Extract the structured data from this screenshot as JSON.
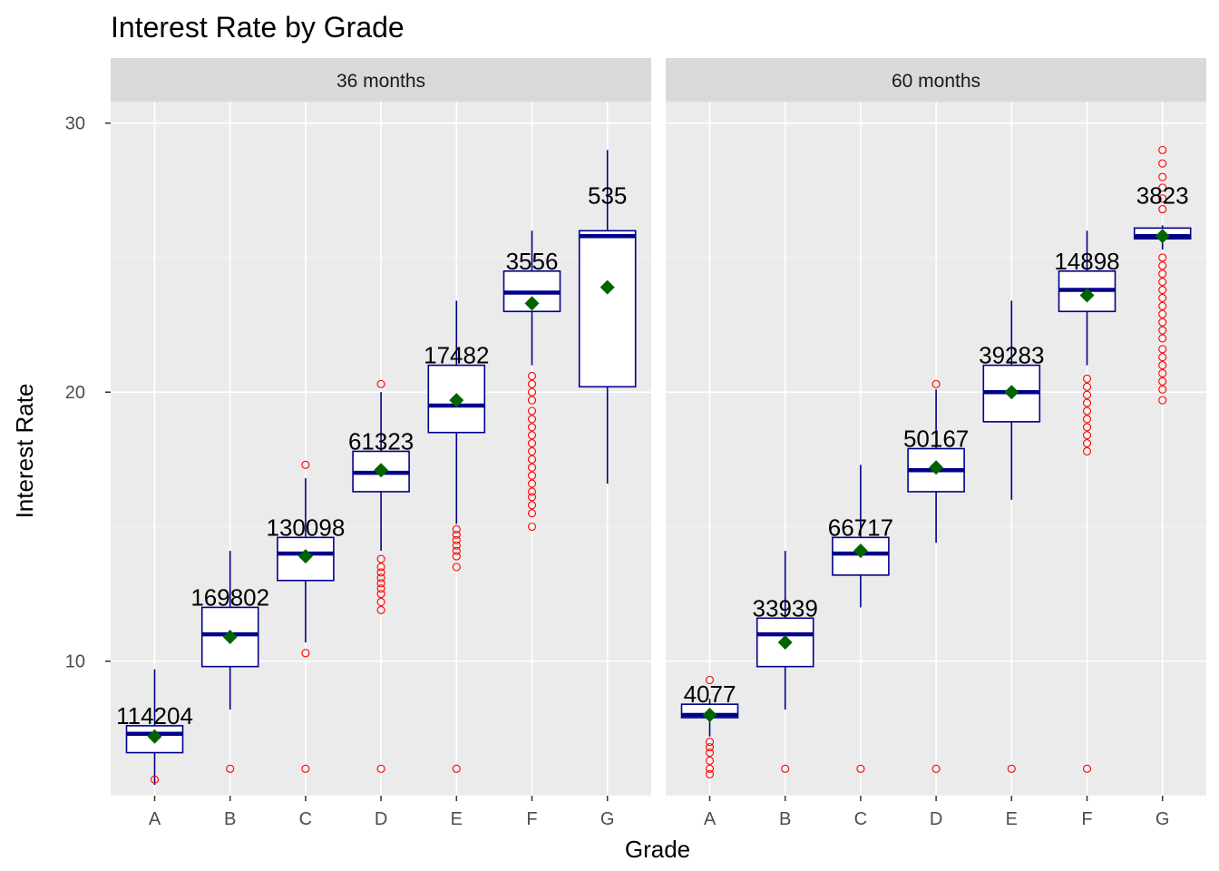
{
  "chart_data": {
    "type": "box",
    "title": "Interest Rate by Grade",
    "xlabel": "Grade",
    "ylabel": "Interest Rate",
    "ylim": [
      5.0,
      30.8
    ],
    "yticks": [
      10,
      20,
      30
    ],
    "categories": [
      "A",
      "B",
      "C",
      "D",
      "E",
      "F",
      "G"
    ],
    "grid": true,
    "colors": {
      "panel_bg": "#ebebeb",
      "strip_bg": "#d9d9d9",
      "grid": "#ffffff",
      "box_stroke": "#00008b",
      "box_fill": "#ffffff",
      "outlier": "#ff0000",
      "mean_marker": "#006400"
    },
    "panels": [
      {
        "strip": "36 months",
        "groups": [
          {
            "grade": "A",
            "count": "114204",
            "q1": 6.6,
            "median": 7.3,
            "q3": 7.6,
            "whisker_low": 5.4,
            "whisker_high": 9.7,
            "mean": 7.2,
            "outliers": [
              5.6
            ]
          },
          {
            "grade": "B",
            "count": "169802",
            "q1": 9.8,
            "median": 11.0,
            "q3": 12.0,
            "whisker_low": 8.2,
            "whisker_high": 14.1,
            "mean": 10.9,
            "outliers": [
              6.0
            ]
          },
          {
            "grade": "C",
            "count": "130098",
            "q1": 13.0,
            "median": 14.0,
            "q3": 14.6,
            "whisker_low": 10.7,
            "whisker_high": 16.8,
            "mean": 13.9,
            "outliers": [
              6.0,
              10.3,
              17.3
            ]
          },
          {
            "grade": "D",
            "count": "61323",
            "q1": 16.3,
            "median": 17.0,
            "q3": 17.8,
            "whisker_low": 14.1,
            "whisker_high": 20.0,
            "mean": 17.1,
            "outliers": [
              6.0,
              11.9,
              12.2,
              12.5,
              12.7,
              12.9,
              13.1,
              13.3,
              13.5,
              13.8,
              20.3
            ]
          },
          {
            "grade": "E",
            "count": "17482",
            "q1": 18.5,
            "median": 19.5,
            "q3": 21.0,
            "whisker_low": 15.1,
            "whisker_high": 23.4,
            "mean": 19.7,
            "outliers": [
              6.0,
              13.5,
              13.9,
              14.1,
              14.3,
              14.5,
              14.7,
              14.9
            ]
          },
          {
            "grade": "F",
            "count": "3556",
            "q1": 23.0,
            "median": 23.7,
            "q3": 24.5,
            "whisker_low": 21.0,
            "whisker_high": 26.0,
            "mean": 23.3,
            "outliers": [
              15.0,
              15.5,
              15.8,
              16.1,
              16.3,
              16.6,
              16.9,
              17.2,
              17.5,
              17.8,
              18.1,
              18.4,
              18.7,
              19.0,
              19.3,
              19.7,
              20.0,
              20.3,
              20.6
            ]
          },
          {
            "grade": "G",
            "count": "535",
            "q1": 20.2,
            "median": 25.8,
            "q3": 26.0,
            "whisker_low": 16.6,
            "whisker_high": 29.0,
            "mean": 23.9,
            "outliers": []
          }
        ]
      },
      {
        "strip": "60 months",
        "groups": [
          {
            "grade": "A",
            "count": "4077",
            "q1": 7.9,
            "median": 8.0,
            "q3": 8.4,
            "whisker_low": 7.2,
            "whisker_high": 8.6,
            "mean": 8.0,
            "outliers": [
              5.8,
              6.0,
              6.3,
              6.6,
              6.8,
              7.0,
              9.3
            ]
          },
          {
            "grade": "B",
            "count": "33939",
            "q1": 9.8,
            "median": 11.0,
            "q3": 11.6,
            "whisker_low": 8.2,
            "whisker_high": 14.1,
            "mean": 10.7,
            "outliers": [
              6.0
            ]
          },
          {
            "grade": "C",
            "count": "66717",
            "q1": 13.2,
            "median": 14.0,
            "q3": 14.6,
            "whisker_low": 12.0,
            "whisker_high": 17.3,
            "mean": 14.1,
            "outliers": [
              6.0
            ]
          },
          {
            "grade": "D",
            "count": "50167",
            "q1": 16.3,
            "median": 17.1,
            "q3": 17.9,
            "whisker_low": 14.4,
            "whisker_high": 20.1,
            "mean": 17.2,
            "outliers": [
              6.0,
              20.3
            ]
          },
          {
            "grade": "E",
            "count": "39283",
            "q1": 18.9,
            "median": 20.0,
            "q3": 21.0,
            "whisker_low": 16.0,
            "whisker_high": 23.4,
            "mean": 20.0,
            "outliers": [
              6.0
            ]
          },
          {
            "grade": "F",
            "count": "14898",
            "q1": 23.0,
            "median": 23.8,
            "q3": 24.5,
            "whisker_low": 21.0,
            "whisker_high": 26.0,
            "mean": 23.6,
            "outliers": [
              6.0,
              17.8,
              18.1,
              18.4,
              18.7,
              19.0,
              19.3,
              19.6,
              19.9,
              20.2,
              20.5
            ]
          },
          {
            "grade": "G",
            "count": "3823",
            "q1": 25.7,
            "median": 25.8,
            "q3": 26.1,
            "whisker_low": 25.3,
            "whisker_high": 26.2,
            "mean": 25.8,
            "outliers": [
              19.7,
              20.1,
              20.4,
              20.7,
              21.0,
              21.3,
              21.6,
              22.0,
              22.3,
              22.6,
              22.9,
              23.2,
              23.5,
              23.8,
              24.1,
              24.4,
              24.7,
              25.0,
              26.8,
              27.2,
              27.6,
              28.0,
              28.5,
              29.0
            ]
          }
        ]
      }
    ]
  }
}
